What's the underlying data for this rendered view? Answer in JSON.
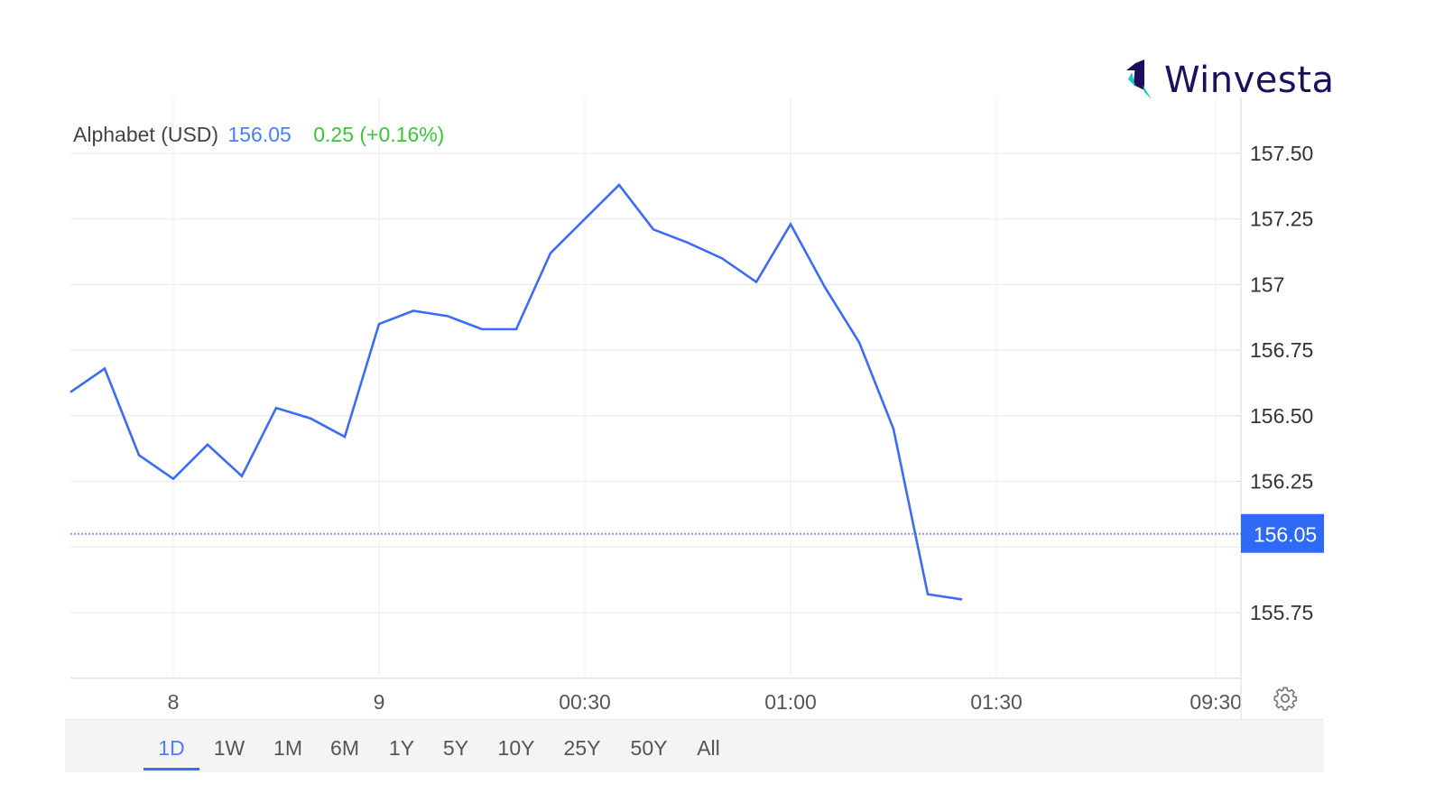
{
  "brand": {
    "name": "Winvesta",
    "colors": {
      "dark": "#1d0f5c",
      "accent": "#1fc8c0"
    }
  },
  "header": {
    "name": "Alphabet (USD)",
    "price": "156.05",
    "change": "0.25 (+0.16%)"
  },
  "ranges": [
    {
      "label": "1D",
      "active": true
    },
    {
      "label": "1W"
    },
    {
      "label": "1M"
    },
    {
      "label": "6M"
    },
    {
      "label": "1Y"
    },
    {
      "label": "5Y"
    },
    {
      "label": "10Y"
    },
    {
      "label": "25Y"
    },
    {
      "label": "50Y"
    },
    {
      "label": "All"
    }
  ],
  "chart_data": {
    "type": "line",
    "title": "",
    "xlabel": "",
    "ylabel": "",
    "ylim": [
      155.5,
      157.5
    ],
    "grid": true,
    "y_ticks": [
      "157.50",
      "157.25",
      "157",
      "156.75",
      "156.50",
      "156.25",
      "155.75"
    ],
    "y_tick_values": [
      157.5,
      157.25,
      157.0,
      156.75,
      156.5,
      156.25,
      155.75
    ],
    "x_ticks": [
      {
        "label": "8",
        "at": "23:30"
      },
      {
        "label": "9",
        "at": "00:00"
      },
      {
        "label": "00:30",
        "at": "00:30"
      },
      {
        "label": "01:00",
        "at": "01:00"
      },
      {
        "label": "01:30",
        "at": "01:30"
      },
      {
        "label": "09:30",
        "at": "02:02"
      }
    ],
    "current_price": {
      "value": 156.05,
      "label": "156.05"
    },
    "series": [
      {
        "color": "#3b6cf6",
        "x": [
          "23:15",
          "23:20",
          "23:25",
          "23:30",
          "23:35",
          "23:40",
          "23:45",
          "23:50",
          "23:55",
          "00:00",
          "00:05",
          "00:10",
          "00:15",
          "00:20",
          "00:25",
          "00:30",
          "00:35",
          "00:40",
          "00:45",
          "00:50",
          "00:55",
          "01:00",
          "01:05",
          "01:10",
          "01:15",
          "01:20",
          "01:25"
        ],
        "values": [
          156.59,
          156.68,
          156.35,
          156.26,
          156.39,
          156.27,
          156.53,
          156.49,
          156.42,
          156.85,
          156.9,
          156.88,
          156.83,
          156.83,
          157.12,
          157.25,
          157.38,
          157.21,
          157.16,
          157.1,
          157.01,
          157.23,
          156.99,
          156.78,
          156.45,
          155.82,
          155.8
        ]
      }
    ]
  }
}
